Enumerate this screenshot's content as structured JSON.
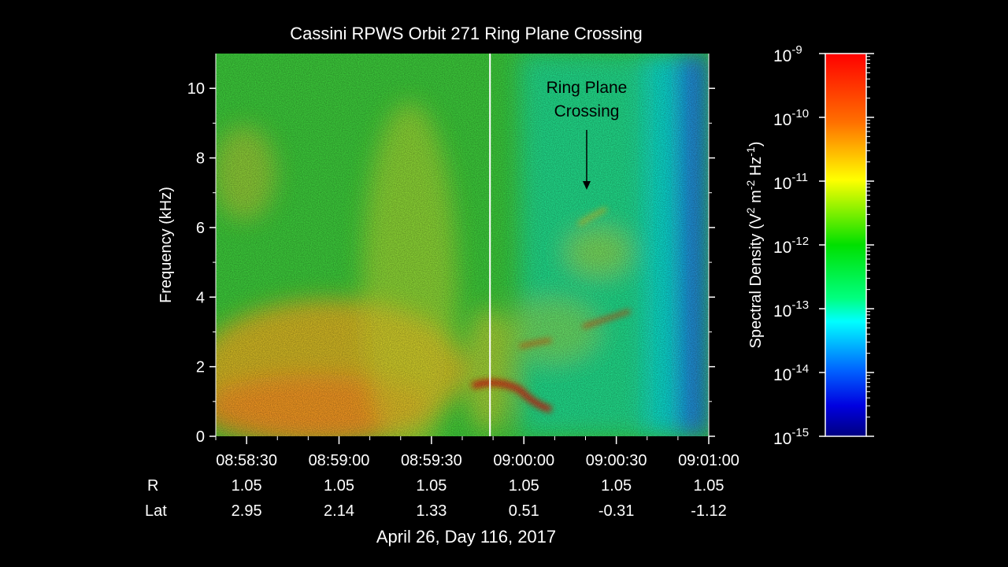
{
  "chart_data": {
    "type": "heatmap",
    "title": "Cassini RPWS Orbit 271 Ring Plane Crossing",
    "ylabel": "Frequency (kHz)",
    "xlabel": "April 26, Day 116, 2017",
    "ylim": [
      0,
      11
    ],
    "y_ticks": [
      0,
      2,
      4,
      6,
      8,
      10
    ],
    "y_tick_labels": [
      "0",
      "2",
      "4",
      "6",
      "8",
      "10"
    ],
    "x_ticks": [
      "08:58:30",
      "08:59:00",
      "08:59:30",
      "09:00:00",
      "09:00:30",
      "09:01:00"
    ],
    "x_range": [
      "08:58:20",
      "09:01:00"
    ],
    "ephemeris": [
      {
        "label": "R",
        "values": [
          "1.05",
          "1.05",
          "1.05",
          "1.05",
          "1.05",
          "1.05"
        ]
      },
      {
        "label": "Lat",
        "values": [
          "2.95",
          "2.14",
          "1.33",
          "0.51",
          "-0.31",
          "-1.12"
        ]
      }
    ],
    "annotation": {
      "lines": [
        "Ring Plane",
        "Crossing"
      ],
      "time": "09:00:20",
      "frequency_khz": 7.5
    },
    "marker_line_time": "08:59:49",
    "colorbar": {
      "label_main": "Spectral Density (V",
      "label_sup1": "2",
      "label_mid": " m",
      "label_sup2": "-2",
      "label_mid2": " Hz",
      "label_sup3": "-1",
      "label_end": ")",
      "scale": "log",
      "ticks": [
        {
          "base": "10",
          "exp": "-9"
        },
        {
          "base": "10",
          "exp": "-10"
        },
        {
          "base": "10",
          "exp": "-11"
        },
        {
          "base": "10",
          "exp": "-12"
        },
        {
          "base": "10",
          "exp": "-13"
        },
        {
          "base": "10",
          "exp": "-14"
        },
        {
          "base": "10",
          "exp": "-15"
        }
      ],
      "colors": [
        "#ff0000",
        "#ff8000",
        "#ffff00",
        "#00e000",
        "#00ffff",
        "#0000ff",
        "#000080"
      ]
    }
  }
}
